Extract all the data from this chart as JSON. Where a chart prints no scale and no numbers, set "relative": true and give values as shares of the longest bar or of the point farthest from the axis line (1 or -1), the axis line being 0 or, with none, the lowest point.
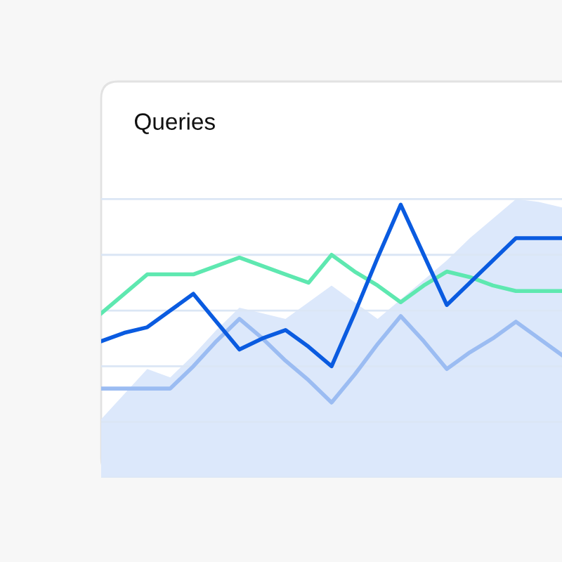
{
  "chart_data": {
    "type": "line",
    "title": "Queries",
    "relative": true,
    "grid": "y",
    "tick_labels": false,
    "categories": [
      null,
      null,
      null,
      null,
      null,
      null,
      null,
      null,
      null,
      null,
      null,
      null,
      null,
      null,
      null,
      null,
      null,
      null,
      null,
      null,
      null
    ],
    "series": [
      {
        "type": "area",
        "color": "#dce8fb",
        "values": [
          0.21,
          0.3,
          0.39,
          0.36,
          0.44,
          0.53,
          0.61,
          0.59,
          0.57,
          0.63,
          0.69,
          0.63,
          0.57,
          0.64,
          0.71,
          0.78,
          0.86,
          0.93,
          1.0,
          0.99,
          0.97
        ]
      },
      {
        "color": "#5ee8b0",
        "values": [
          0.59,
          0.66,
          0.73,
          0.73,
          0.73,
          0.76,
          0.79,
          0.76,
          0.73,
          0.7,
          0.8,
          0.74,
          0.69,
          0.63,
          0.69,
          0.74,
          0.72,
          0.69,
          0.67,
          0.67,
          0.67
        ]
      },
      {
        "color": "#9bbcf2",
        "values": [
          0.32,
          0.32,
          0.32,
          0.32,
          0.4,
          0.49,
          0.57,
          0.5,
          0.42,
          0.35,
          0.27,
          0.37,
          0.48,
          0.58,
          0.49,
          0.39,
          0.45,
          0.5,
          0.56,
          0.5,
          0.44
        ]
      },
      {
        "color": "#0a5be0",
        "values": [
          0.49,
          0.52,
          0.54,
          0.6,
          0.66,
          0.56,
          0.46,
          0.5,
          0.53,
          0.47,
          0.4,
          0.59,
          0.79,
          0.98,
          0.8,
          0.62,
          0.7,
          0.78,
          0.86,
          0.86,
          0.86
        ]
      }
    ]
  }
}
